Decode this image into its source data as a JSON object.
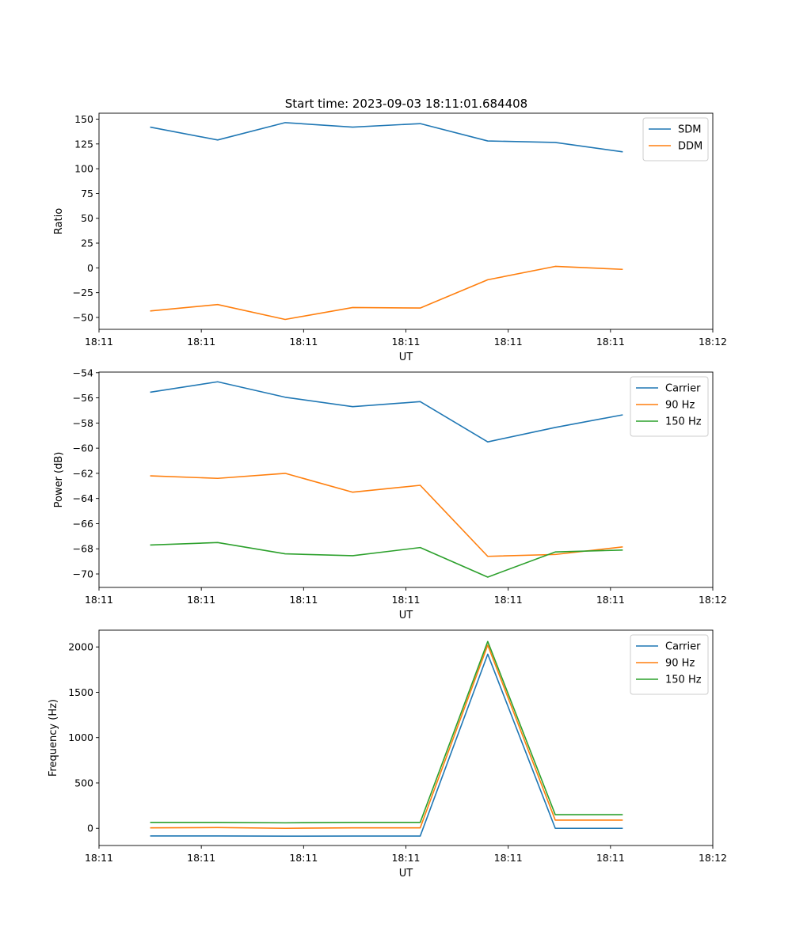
{
  "title": "Start time: 2023-09-03 18:11:01.684408",
  "colors": {
    "blue": "#1f77b4",
    "orange": "#ff7f0e",
    "green": "#2ca02c"
  },
  "chart_data": [
    {
      "type": "line",
      "title": "Start time: 2023-09-03 18:11:01.684408",
      "xlabel": "UT",
      "ylabel": "Ratio",
      "x": [
        0.25,
        0.58,
        0.91,
        1.24,
        1.57,
        1.9,
        2.23,
        2.56
      ],
      "xlim": [
        0,
        3.0
      ],
      "xticks": [
        0,
        0.5,
        1.0,
        1.5,
        2.0,
        2.5,
        3.0
      ],
      "xtick_labels": [
        "18:11",
        "18:11",
        "18:11",
        "18:11",
        "18:11",
        "18:11",
        "18:12"
      ],
      "ylim": [
        -62,
        156
      ],
      "yticks": [
        -50,
        -25,
        0,
        25,
        50,
        75,
        100,
        125,
        150
      ],
      "ytick_labels": [
        "−50",
        "−25",
        "0",
        "25",
        "50",
        "75",
        "100",
        "125",
        "150"
      ],
      "legend": "top-right",
      "series": [
        {
          "name": "SDM",
          "color": "#1f77b4",
          "values": [
            142,
            129,
            146.5,
            142,
            145.5,
            128,
            126.5,
            117
          ]
        },
        {
          "name": "DDM",
          "color": "#ff7f0e",
          "values": [
            -43.5,
            -37,
            -52,
            -40,
            -40.5,
            -12,
            1.5,
            -1.5
          ]
        }
      ]
    },
    {
      "type": "line",
      "xlabel": "UT",
      "ylabel": "Power (dB)",
      "x": [
        0.25,
        0.58,
        0.91,
        1.24,
        1.57,
        1.9,
        2.23,
        2.56
      ],
      "xlim": [
        0,
        3.0
      ],
      "xticks": [
        0,
        0.5,
        1.0,
        1.5,
        2.0,
        2.5,
        3.0
      ],
      "xtick_labels": [
        "18:11",
        "18:11",
        "18:11",
        "18:11",
        "18:11",
        "18:11",
        "18:12"
      ],
      "ylim": [
        -71.07,
        -53.95
      ],
      "yticks": [
        -70,
        -68,
        -66,
        -64,
        -62,
        -60,
        -58,
        -56,
        -54
      ],
      "ytick_labels": [
        "−70",
        "−68",
        "−66",
        "−64",
        "−62",
        "−60",
        "−58",
        "−56",
        "−54"
      ],
      "legend": "top-right",
      "series": [
        {
          "name": "Carrier",
          "color": "#1f77b4",
          "values": [
            -55.55,
            -54.72,
            -55.95,
            -56.7,
            -56.3,
            -59.5,
            -58.35,
            -57.35
          ]
        },
        {
          "name": "90 Hz",
          "color": "#ff7f0e",
          "values": [
            -62.2,
            -62.4,
            -62.0,
            -63.5,
            -62.95,
            -68.6,
            -68.45,
            -67.85
          ]
        },
        {
          "name": "150 Hz",
          "color": "#2ca02c",
          "values": [
            -67.7,
            -67.5,
            -68.4,
            -68.55,
            -67.9,
            -70.25,
            -68.25,
            -68.1
          ]
        }
      ]
    },
    {
      "type": "line",
      "xlabel": "UT",
      "ylabel": "Frequency (Hz)",
      "x": [
        0.25,
        0.58,
        0.91,
        1.24,
        1.57,
        1.9,
        2.23,
        2.56
      ],
      "xlim": [
        0,
        3.0
      ],
      "xticks": [
        0,
        0.5,
        1.0,
        1.5,
        2.0,
        2.5,
        3.0
      ],
      "xtick_labels": [
        "18:11",
        "18:11",
        "18:11",
        "18:11",
        "18:11",
        "18:11",
        "18:12"
      ],
      "ylim": [
        -190,
        2185
      ],
      "yticks": [
        0,
        500,
        1000,
        1500,
        2000
      ],
      "ytick_labels": [
        "0",
        "500",
        "1000",
        "1500",
        "2000"
      ],
      "legend": "top-right",
      "series": [
        {
          "name": "Carrier",
          "color": "#1f77b4",
          "values": [
            -85,
            -85,
            -87,
            -86,
            -86,
            1920,
            0,
            0
          ]
        },
        {
          "name": "90 Hz",
          "color": "#ff7f0e",
          "values": [
            5,
            8,
            0,
            5,
            5,
            2020,
            90,
            90
          ]
        },
        {
          "name": "150 Hz",
          "color": "#2ca02c",
          "values": [
            65,
            65,
            60,
            65,
            65,
            2060,
            150,
            150
          ]
        }
      ]
    }
  ]
}
